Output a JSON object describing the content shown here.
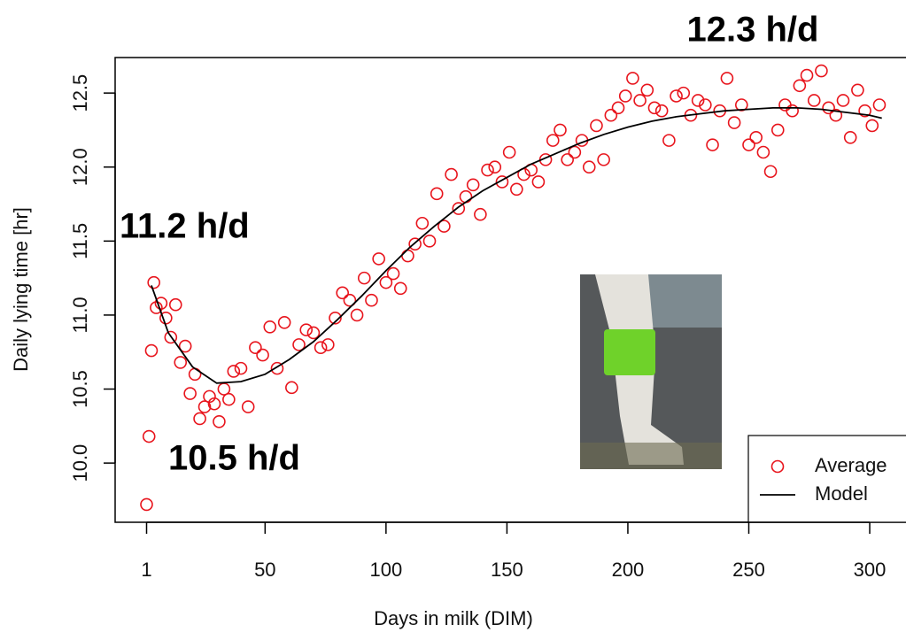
{
  "chart_data": {
    "type": "scatter",
    "x_label": "Days in milk (DIM)",
    "y_label": "Daily lying time [hr]",
    "annotations": [
      "12.3 h/d",
      "11.2 h/d",
      "10.5 h/d"
    ],
    "xlim": [
      -12,
      315
    ],
    "ylim": [
      9.6,
      12.74
    ],
    "xticks": [
      1,
      50,
      100,
      150,
      200,
      250,
      300
    ],
    "yticks": [
      {
        "value": 10,
        "label": "10.0"
      },
      10.5,
      {
        "value": 11,
        "label": "11.0"
      },
      11.5,
      {
        "value": 12,
        "label": "12.0"
      },
      12.5
    ],
    "series": [
      {
        "name": "Average",
        "color": "#e8141c",
        "style": "points",
        "x": [
          1,
          2,
          3,
          4,
          5,
          7,
          9,
          11,
          13,
          15,
          17,
          19,
          21,
          23,
          25,
          27,
          29,
          31,
          33,
          35,
          37,
          40,
          43,
          46,
          49,
          52,
          55,
          58,
          61,
          64,
          67,
          70,
          73,
          76,
          79,
          82,
          85,
          88,
          91,
          94,
          97,
          100,
          103,
          106,
          109,
          112,
          115,
          118,
          121,
          124,
          127,
          130,
          133,
          136,
          139,
          142,
          145,
          148,
          151,
          154,
          157,
          160,
          163,
          166,
          169,
          172,
          175,
          178,
          181,
          184,
          187,
          190,
          193,
          196,
          199,
          202,
          205,
          208,
          211,
          214,
          217,
          220,
          223,
          226,
          229,
          232,
          235,
          238,
          241,
          244,
          247,
          250,
          253,
          256,
          259,
          262,
          265,
          268,
          271,
          274,
          277,
          280,
          283,
          286,
          289,
          292,
          295,
          298,
          301,
          304
        ],
        "values": [
          9.72,
          10.18,
          10.76,
          11.22,
          11.05,
          11.08,
          10.98,
          10.85,
          11.07,
          10.68,
          10.79,
          10.47,
          10.6,
          10.3,
          10.38,
          10.45,
          10.4,
          10.28,
          10.5,
          10.43,
          10.62,
          10.64,
          10.38,
          10.78,
          10.73,
          10.92,
          10.64,
          10.95,
          10.51,
          10.8,
          10.9,
          10.88,
          10.78,
          10.8,
          10.98,
          11.15,
          11.1,
          11.0,
          11.25,
          11.1,
          11.38,
          11.22,
          11.28,
          11.18,
          11.4,
          11.48,
          11.62,
          11.5,
          11.82,
          11.6,
          11.95,
          11.72,
          11.8,
          11.88,
          11.68,
          11.98,
          12.0,
          11.9,
          12.1,
          11.85,
          11.95,
          11.98,
          11.9,
          12.05,
          12.18,
          12.25,
          12.05,
          12.1,
          12.18,
          12.0,
          12.28,
          12.05,
          12.35,
          12.4,
          12.48,
          12.6,
          12.45,
          12.52,
          12.4,
          12.38,
          12.18,
          12.48,
          12.5,
          12.35,
          12.45,
          12.42,
          12.15,
          12.38,
          12.6,
          12.3,
          12.42,
          12.15,
          12.2,
          12.1,
          11.97,
          12.25,
          12.42,
          12.38,
          12.55,
          12.62,
          12.45,
          12.65,
          12.4,
          12.35,
          12.45,
          12.2,
          12.52,
          12.38,
          12.28,
          12.42
        ]
      },
      {
        "name": "Model",
        "color": "#000000",
        "style": "line",
        "x": [
          3,
          10,
          20,
          30,
          40,
          50,
          60,
          70,
          80,
          90,
          100,
          110,
          120,
          130,
          140,
          150,
          160,
          170,
          180,
          190,
          200,
          210,
          220,
          230,
          240,
          250,
          260,
          270,
          280,
          290,
          300,
          305
        ],
        "values": [
          11.2,
          10.88,
          10.65,
          10.54,
          10.55,
          10.6,
          10.7,
          10.82,
          10.97,
          11.13,
          11.3,
          11.46,
          11.6,
          11.73,
          11.84,
          11.93,
          12.02,
          12.09,
          12.16,
          12.22,
          12.27,
          12.31,
          12.34,
          12.36,
          12.38,
          12.39,
          12.4,
          12.4,
          12.39,
          12.37,
          12.35,
          12.33
        ]
      }
    ]
  }
}
